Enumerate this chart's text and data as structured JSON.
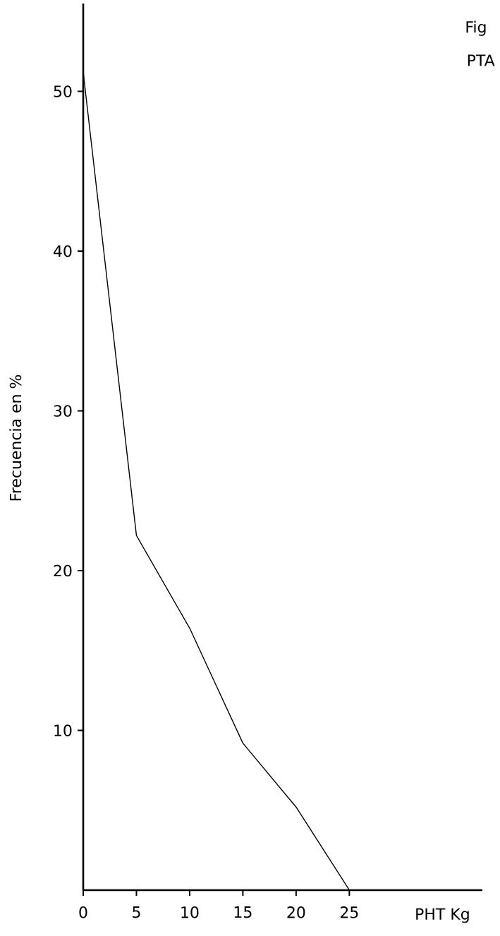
{
  "chart_data": {
    "type": "line",
    "xlabel": "PHT Kg",
    "ylabel": "Frecuencia en %",
    "annotations": [
      "Fig",
      "PTA"
    ],
    "x": [
      0,
      5,
      10,
      15,
      20,
      25
    ],
    "values": [
      51.2,
      22.2,
      16.4,
      9.2,
      5.2,
      0
    ],
    "color": "#000000",
    "marker": "none",
    "xlim": [
      0,
      37.5
    ],
    "ylim": [
      0,
      55.5
    ],
    "xticks": [
      0,
      5,
      10,
      15,
      20,
      25
    ],
    "yticks": [
      10,
      20,
      30,
      40,
      50
    ]
  }
}
